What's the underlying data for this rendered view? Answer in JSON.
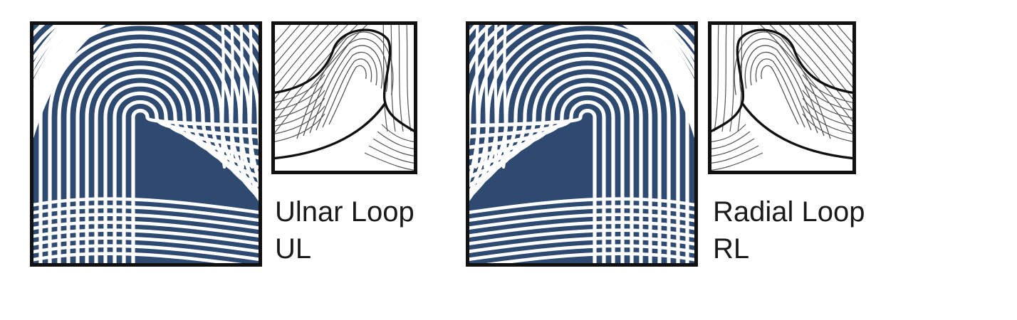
{
  "colors": {
    "ridge": "#2e4a70",
    "valley": "#ffffff",
    "border": "#111111",
    "schematic_line": "#555555",
    "delta_line": "#111111"
  },
  "patterns": [
    {
      "id": "ulnar",
      "name": "Ulnar Loop",
      "code": "UL",
      "loop_opens_toward": "right",
      "fingerprint_icon": "fingerprint-ulnar-loop-icon",
      "schematic_icon": "ulnar-loop-schematic-icon"
    },
    {
      "id": "radial",
      "name": "Radial Loop",
      "code": "RL",
      "loop_opens_toward": "left",
      "fingerprint_icon": "fingerprint-radial-loop-icon",
      "schematic_icon": "radial-loop-schematic-icon"
    }
  ]
}
